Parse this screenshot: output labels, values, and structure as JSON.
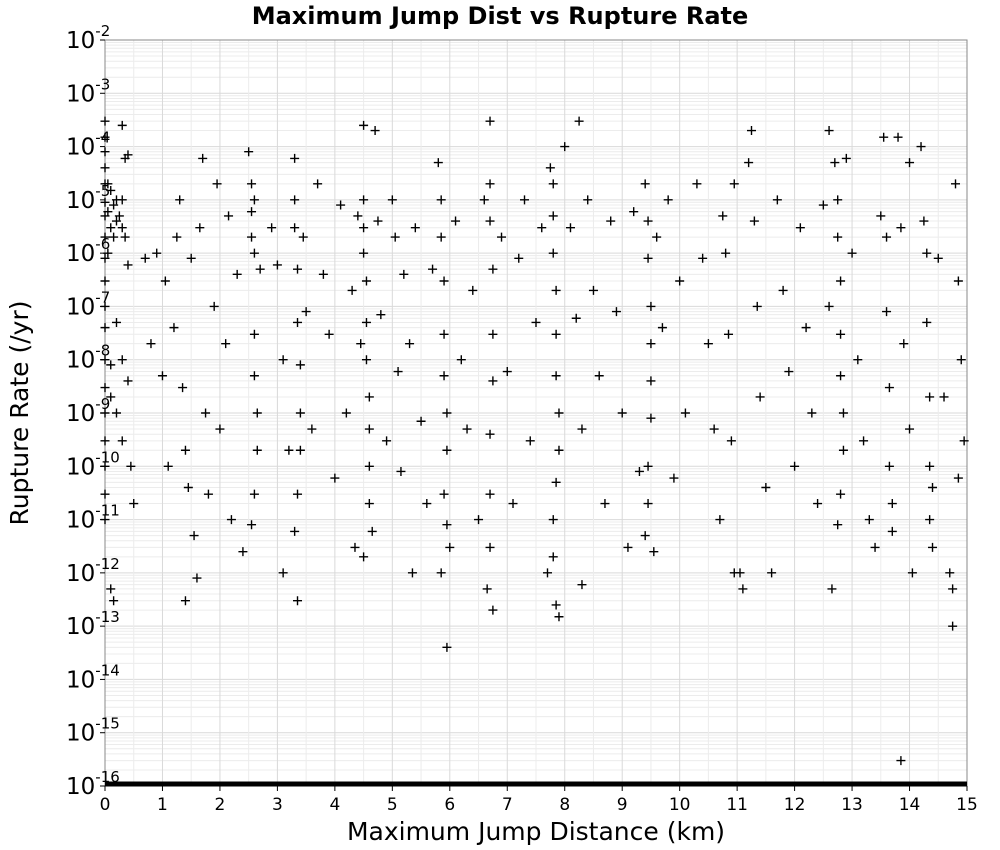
{
  "chart_data": {
    "type": "scatter",
    "title": "Maximum Jump Dist vs Rupture Rate",
    "xlabel": "Maximum Jump Distance (km)",
    "ylabel": "Rupture Rate (/yr)",
    "xlim": [
      0,
      15
    ],
    "ylim": [
      1e-16,
      0.01
    ],
    "y_scale": "log",
    "grid": true,
    "legend": "none",
    "marker": "plus",
    "marker_color": "#000000",
    "x_ticks": [
      {
        "value": 0,
        "label": "0"
      },
      {
        "value": 1,
        "label": "1"
      },
      {
        "value": 2,
        "label": "2"
      },
      {
        "value": 3,
        "label": "3"
      },
      {
        "value": 4,
        "label": "4"
      },
      {
        "value": 5,
        "label": "5"
      },
      {
        "value": 6,
        "label": "6"
      },
      {
        "value": 7,
        "label": "7"
      },
      {
        "value": 8,
        "label": "8"
      },
      {
        "value": 9,
        "label": "9"
      },
      {
        "value": 10,
        "label": "10"
      },
      {
        "value": 11,
        "label": "11"
      },
      {
        "value": 12,
        "label": "12"
      },
      {
        "value": 13,
        "label": "13"
      },
      {
        "value": 14,
        "label": "14"
      },
      {
        "value": 15,
        "label": "15"
      }
    ],
    "y_ticks": [
      {
        "value": 0.01,
        "base": "10",
        "exp": "-2"
      },
      {
        "value": 0.001,
        "base": "10",
        "exp": "-3"
      },
      {
        "value": 0.0001,
        "base": "10",
        "exp": "-4"
      },
      {
        "value": 1e-05,
        "base": "10",
        "exp": "-5"
      },
      {
        "value": 1e-06,
        "base": "10",
        "exp": "-6"
      },
      {
        "value": 1e-07,
        "base": "10",
        "exp": "-7"
      },
      {
        "value": 1e-08,
        "base": "10",
        "exp": "-8"
      },
      {
        "value": 1e-09,
        "base": "10",
        "exp": "-9"
      },
      {
        "value": 1e-10,
        "base": "10",
        "exp": "-10"
      },
      {
        "value": 1e-11,
        "base": "10",
        "exp": "-11"
      },
      {
        "value": 1e-12,
        "base": "10",
        "exp": "-12"
      },
      {
        "value": 1e-13,
        "base": "10",
        "exp": "-13"
      },
      {
        "value": 1e-14,
        "base": "10",
        "exp": "-14"
      },
      {
        "value": 1e-15,
        "base": "10",
        "exp": "-15"
      },
      {
        "value": 1e-16,
        "base": "10",
        "exp": "-16"
      }
    ],
    "points": [
      [
        0.0,
        0.0003
      ],
      [
        0.0,
        0.00015
      ],
      [
        0.0,
        8e-05
      ],
      [
        0.0,
        4e-05
      ],
      [
        0.0,
        2e-05
      ],
      [
        0.0,
        9e-06
      ],
      [
        0.0,
        5e-06
      ],
      [
        0.0,
        2e-06
      ],
      [
        0.0,
        8e-07
      ],
      [
        0.0,
        3e-07
      ],
      [
        0.0,
        1e-07
      ],
      [
        0.0,
        4e-08
      ],
      [
        0.0,
        1e-08
      ],
      [
        0.0,
        3e-09
      ],
      [
        0.0,
        1e-09
      ],
      [
        0.0,
        3e-10
      ],
      [
        0.0,
        1e-10
      ],
      [
        0.0,
        3e-11
      ],
      [
        0.0,
        1e-11
      ],
      [
        0.05,
        2e-05
      ],
      [
        0.05,
        6e-06
      ],
      [
        0.05,
        1e-06
      ],
      [
        0.1,
        1.5e-05
      ],
      [
        0.1,
        3e-06
      ],
      [
        0.1,
        8e-09
      ],
      [
        0.1,
        2e-09
      ],
      [
        0.15,
        8e-06
      ],
      [
        0.15,
        2e-06
      ],
      [
        0.2,
        1e-05
      ],
      [
        0.2,
        4e-06
      ],
      [
        0.2,
        5e-08
      ],
      [
        0.2,
        1e-09
      ],
      [
        0.25,
        5e-06
      ],
      [
        0.3,
        0.00025
      ],
      [
        0.3,
        1e-05
      ],
      [
        0.3,
        3e-06
      ],
      [
        0.3,
        1e-08
      ],
      [
        0.3,
        3e-10
      ],
      [
        0.35,
        6e-05
      ],
      [
        0.35,
        2e-06
      ],
      [
        0.4,
        7e-05
      ],
      [
        0.4,
        6e-07
      ],
      [
        0.4,
        4e-09
      ],
      [
        0.45,
        1e-10
      ],
      [
        0.5,
        2e-11
      ],
      [
        0.1,
        5e-13
      ],
      [
        0.15,
        3e-13
      ],
      [
        0.7,
        8e-07
      ],
      [
        0.8,
        2e-08
      ],
      [
        0.9,
        1e-06
      ],
      [
        1.0,
        5e-09
      ],
      [
        1.05,
        3e-07
      ],
      [
        1.1,
        1e-10
      ],
      [
        1.2,
        4e-08
      ],
      [
        1.25,
        2e-06
      ],
      [
        1.3,
        1e-05
      ],
      [
        1.35,
        3e-09
      ],
      [
        1.4,
        2e-10
      ],
      [
        1.45,
        4e-11
      ],
      [
        1.5,
        8e-07
      ],
      [
        1.55,
        5e-12
      ],
      [
        1.6,
        8e-13
      ],
      [
        1.4,
        3e-13
      ],
      [
        1.65,
        3e-06
      ],
      [
        1.7,
        6e-05
      ],
      [
        1.75,
        1e-09
      ],
      [
        1.8,
        3e-11
      ],
      [
        1.9,
        1e-07
      ],
      [
        1.95,
        2e-05
      ],
      [
        2.0,
        5e-10
      ],
      [
        2.1,
        2e-08
      ],
      [
        2.15,
        5e-06
      ],
      [
        2.2,
        1e-11
      ],
      [
        2.3,
        4e-07
      ],
      [
        2.5,
        8e-05
      ],
      [
        2.55,
        2e-05
      ],
      [
        2.55,
        6e-06
      ],
      [
        2.55,
        2e-06
      ],
      [
        2.6,
        1e-05
      ],
      [
        2.6,
        1e-06
      ],
      [
        2.6,
        3e-08
      ],
      [
        2.6,
        5e-09
      ],
      [
        2.65,
        1e-09
      ],
      [
        2.65,
        2e-10
      ],
      [
        2.6,
        3e-11
      ],
      [
        2.55,
        8e-12
      ],
      [
        2.4,
        2.5e-12
      ],
      [
        2.7,
        5e-07
      ],
      [
        2.9,
        3e-06
      ],
      [
        3.0,
        6e-07
      ],
      [
        3.1,
        1e-08
      ],
      [
        3.2,
        2e-10
      ],
      [
        3.3,
        6e-05
      ],
      [
        3.3,
        1e-05
      ],
      [
        3.3,
        3e-06
      ],
      [
        3.35,
        5e-07
      ],
      [
        3.35,
        5e-08
      ],
      [
        3.4,
        8e-09
      ],
      [
        3.4,
        1e-09
      ],
      [
        3.4,
        2e-10
      ],
      [
        3.35,
        3e-11
      ],
      [
        3.3,
        6e-12
      ],
      [
        3.35,
        3e-13
      ],
      [
        3.1,
        1e-12
      ],
      [
        3.45,
        2e-06
      ],
      [
        3.5,
        8e-08
      ],
      [
        3.6,
        5e-10
      ],
      [
        3.7,
        2e-05
      ],
      [
        3.8,
        4e-07
      ],
      [
        3.9,
        3e-08
      ],
      [
        4.0,
        6e-11
      ],
      [
        4.1,
        8e-06
      ],
      [
        4.2,
        1e-09
      ],
      [
        4.3,
        2e-07
      ],
      [
        4.35,
        3e-12
      ],
      [
        4.4,
        5e-06
      ],
      [
        4.45,
        2e-08
      ],
      [
        4.5,
        0.00025
      ],
      [
        4.5,
        1e-05
      ],
      [
        4.5,
        3e-06
      ],
      [
        4.5,
        1e-06
      ],
      [
        4.55,
        3e-07
      ],
      [
        4.55,
        5e-08
      ],
      [
        4.55,
        1e-08
      ],
      [
        4.6,
        2e-09
      ],
      [
        4.6,
        5e-10
      ],
      [
        4.6,
        1e-10
      ],
      [
        4.6,
        2e-11
      ],
      [
        4.65,
        6e-12
      ],
      [
        4.5,
        2e-12
      ],
      [
        4.7,
        0.0002
      ],
      [
        4.75,
        4e-06
      ],
      [
        4.8,
        7e-08
      ],
      [
        4.9,
        3e-10
      ],
      [
        5.0,
        1e-05
      ],
      [
        5.05,
        2e-06
      ],
      [
        5.1,
        6e-09
      ],
      [
        5.15,
        8e-11
      ],
      [
        5.2,
        4e-07
      ],
      [
        5.3,
        2e-08
      ],
      [
        5.35,
        1e-12
      ],
      [
        5.4,
        3e-06
      ],
      [
        5.5,
        7e-10
      ],
      [
        5.6,
        2e-11
      ],
      [
        5.7,
        5e-07
      ],
      [
        5.8,
        5e-05
      ],
      [
        5.85,
        1e-05
      ],
      [
        5.85,
        2e-06
      ],
      [
        5.9,
        3e-07
      ],
      [
        5.9,
        3e-08
      ],
      [
        5.9,
        5e-09
      ],
      [
        5.95,
        1e-09
      ],
      [
        5.95,
        2e-10
      ],
      [
        5.9,
        3e-11
      ],
      [
        5.95,
        8e-12
      ],
      [
        6.0,
        3e-12
      ],
      [
        5.85,
        1e-12
      ],
      [
        5.95,
        4e-14
      ],
      [
        6.1,
        4e-06
      ],
      [
        6.2,
        1e-08
      ],
      [
        6.3,
        5e-10
      ],
      [
        6.4,
        2e-07
      ],
      [
        6.5,
        1e-11
      ],
      [
        6.6,
        1e-05
      ],
      [
        6.7,
        0.0003
      ],
      [
        6.7,
        2e-05
      ],
      [
        6.7,
        4e-06
      ],
      [
        6.75,
        5e-07
      ],
      [
        6.75,
        3e-08
      ],
      [
        6.75,
        4e-09
      ],
      [
        6.7,
        4e-10
      ],
      [
        6.7,
        3e-11
      ],
      [
        6.7,
        3e-12
      ],
      [
        6.65,
        5e-13
      ],
      [
        6.75,
        2e-13
      ],
      [
        6.9,
        2e-06
      ],
      [
        7.0,
        6e-09
      ],
      [
        7.1,
        2e-11
      ],
      [
        7.2,
        8e-07
      ],
      [
        7.3,
        1e-05
      ],
      [
        7.4,
        3e-10
      ],
      [
        7.5,
        5e-08
      ],
      [
        7.6,
        3e-06
      ],
      [
        7.7,
        1e-12
      ],
      [
        7.75,
        4e-05
      ],
      [
        7.8,
        2e-05
      ],
      [
        7.8,
        5e-06
      ],
      [
        7.8,
        1e-06
      ],
      [
        7.85,
        2e-07
      ],
      [
        7.85,
        3e-08
      ],
      [
        7.85,
        5e-09
      ],
      [
        7.9,
        1e-09
      ],
      [
        7.9,
        2e-10
      ],
      [
        7.85,
        5e-11
      ],
      [
        7.8,
        1e-11
      ],
      [
        7.8,
        2e-12
      ],
      [
        7.85,
        2.5e-13
      ],
      [
        7.9,
        1.5e-13
      ],
      [
        8.0,
        0.0001
      ],
      [
        8.1,
        3e-06
      ],
      [
        8.2,
        6e-08
      ],
      [
        8.25,
        0.0003
      ],
      [
        8.3,
        5e-10
      ],
      [
        8.3,
        6e-13
      ],
      [
        8.4,
        1e-05
      ],
      [
        8.5,
        2e-07
      ],
      [
        8.6,
        5e-09
      ],
      [
        8.7,
        2e-11
      ],
      [
        8.8,
        4e-06
      ],
      [
        8.9,
        8e-08
      ],
      [
        9.0,
        1e-09
      ],
      [
        9.1,
        3e-12
      ],
      [
        9.2,
        6e-06
      ],
      [
        9.3,
        8e-11
      ],
      [
        9.4,
        2e-05
      ],
      [
        9.45,
        4e-06
      ],
      [
        9.45,
        8e-07
      ],
      [
        9.5,
        1e-07
      ],
      [
        9.5,
        2e-08
      ],
      [
        9.5,
        4e-09
      ],
      [
        9.5,
        8e-10
      ],
      [
        9.45,
        1e-10
      ],
      [
        9.45,
        2e-11
      ],
      [
        9.4,
        5e-12
      ],
      [
        9.55,
        2.5e-12
      ],
      [
        9.6,
        2e-06
      ],
      [
        9.7,
        4e-08
      ],
      [
        9.8,
        1e-05
      ],
      [
        9.9,
        6e-11
      ],
      [
        10.0,
        3e-07
      ],
      [
        10.1,
        1e-09
      ],
      [
        10.3,
        2e-05
      ],
      [
        10.4,
        8e-07
      ],
      [
        10.5,
        2e-08
      ],
      [
        10.6,
        5e-10
      ],
      [
        10.7,
        1e-11
      ],
      [
        10.75,
        5e-06
      ],
      [
        10.8,
        1e-06
      ],
      [
        10.85,
        3e-08
      ],
      [
        10.9,
        3e-10
      ],
      [
        10.95,
        2e-05
      ],
      [
        10.95,
        1e-12
      ],
      [
        11.05,
        1e-12
      ],
      [
        11.1,
        5e-13
      ],
      [
        11.2,
        5e-05
      ],
      [
        11.25,
        0.0002
      ],
      [
        11.3,
        4e-06
      ],
      [
        11.35,
        1e-07
      ],
      [
        11.4,
        2e-09
      ],
      [
        11.5,
        4e-11
      ],
      [
        11.6,
        1e-12
      ],
      [
        11.7,
        1e-05
      ],
      [
        11.8,
        2e-07
      ],
      [
        11.9,
        6e-09
      ],
      [
        12.0,
        1e-10
      ],
      [
        12.1,
        3e-06
      ],
      [
        12.2,
        4e-08
      ],
      [
        12.3,
        1e-09
      ],
      [
        12.4,
        2e-11
      ],
      [
        12.5,
        8e-06
      ],
      [
        12.6,
        0.0002
      ],
      [
        12.6,
        1e-07
      ],
      [
        12.65,
        5e-13
      ],
      [
        12.7,
        5e-05
      ],
      [
        12.75,
        1e-05
      ],
      [
        12.75,
        2e-06
      ],
      [
        12.8,
        3e-07
      ],
      [
        12.8,
        3e-08
      ],
      [
        12.8,
        5e-09
      ],
      [
        12.85,
        1e-09
      ],
      [
        12.85,
        2e-10
      ],
      [
        12.8,
        3e-11
      ],
      [
        12.75,
        8e-12
      ],
      [
        12.9,
        6e-05
      ],
      [
        13.0,
        1e-06
      ],
      [
        13.1,
        1e-08
      ],
      [
        13.2,
        3e-10
      ],
      [
        13.3,
        1e-11
      ],
      [
        13.4,
        3e-12
      ],
      [
        13.5,
        5e-06
      ],
      [
        13.55,
        0.00015
      ],
      [
        13.6,
        2e-06
      ],
      [
        13.6,
        8e-08
      ],
      [
        13.65,
        3e-09
      ],
      [
        13.65,
        1e-10
      ],
      [
        13.7,
        2e-11
      ],
      [
        13.7,
        6e-12
      ],
      [
        13.8,
        0.00015
      ],
      [
        13.85,
        3e-06
      ],
      [
        13.9,
        2e-08
      ],
      [
        14.0,
        5e-10
      ],
      [
        14.0,
        5e-05
      ],
      [
        14.05,
        1e-12
      ],
      [
        14.2,
        0.0001
      ],
      [
        14.25,
        4e-06
      ],
      [
        14.3,
        1e-06
      ],
      [
        14.3,
        5e-08
      ],
      [
        14.35,
        2e-09
      ],
      [
        14.35,
        1e-10
      ],
      [
        14.4,
        4e-11
      ],
      [
        14.35,
        1e-11
      ],
      [
        14.4,
        3e-12
      ],
      [
        14.5,
        8e-07
      ],
      [
        14.6,
        2e-09
      ],
      [
        14.7,
        1e-12
      ],
      [
        14.75,
        5e-13
      ],
      [
        14.8,
        2e-05
      ],
      [
        14.85,
        3e-07
      ],
      [
        14.9,
        1e-08
      ],
      [
        14.95,
        3e-10
      ],
      [
        14.85,
        6e-11
      ],
      [
        14.75,
        1e-13
      ],
      [
        13.85,
        3e-16
      ]
    ]
  }
}
